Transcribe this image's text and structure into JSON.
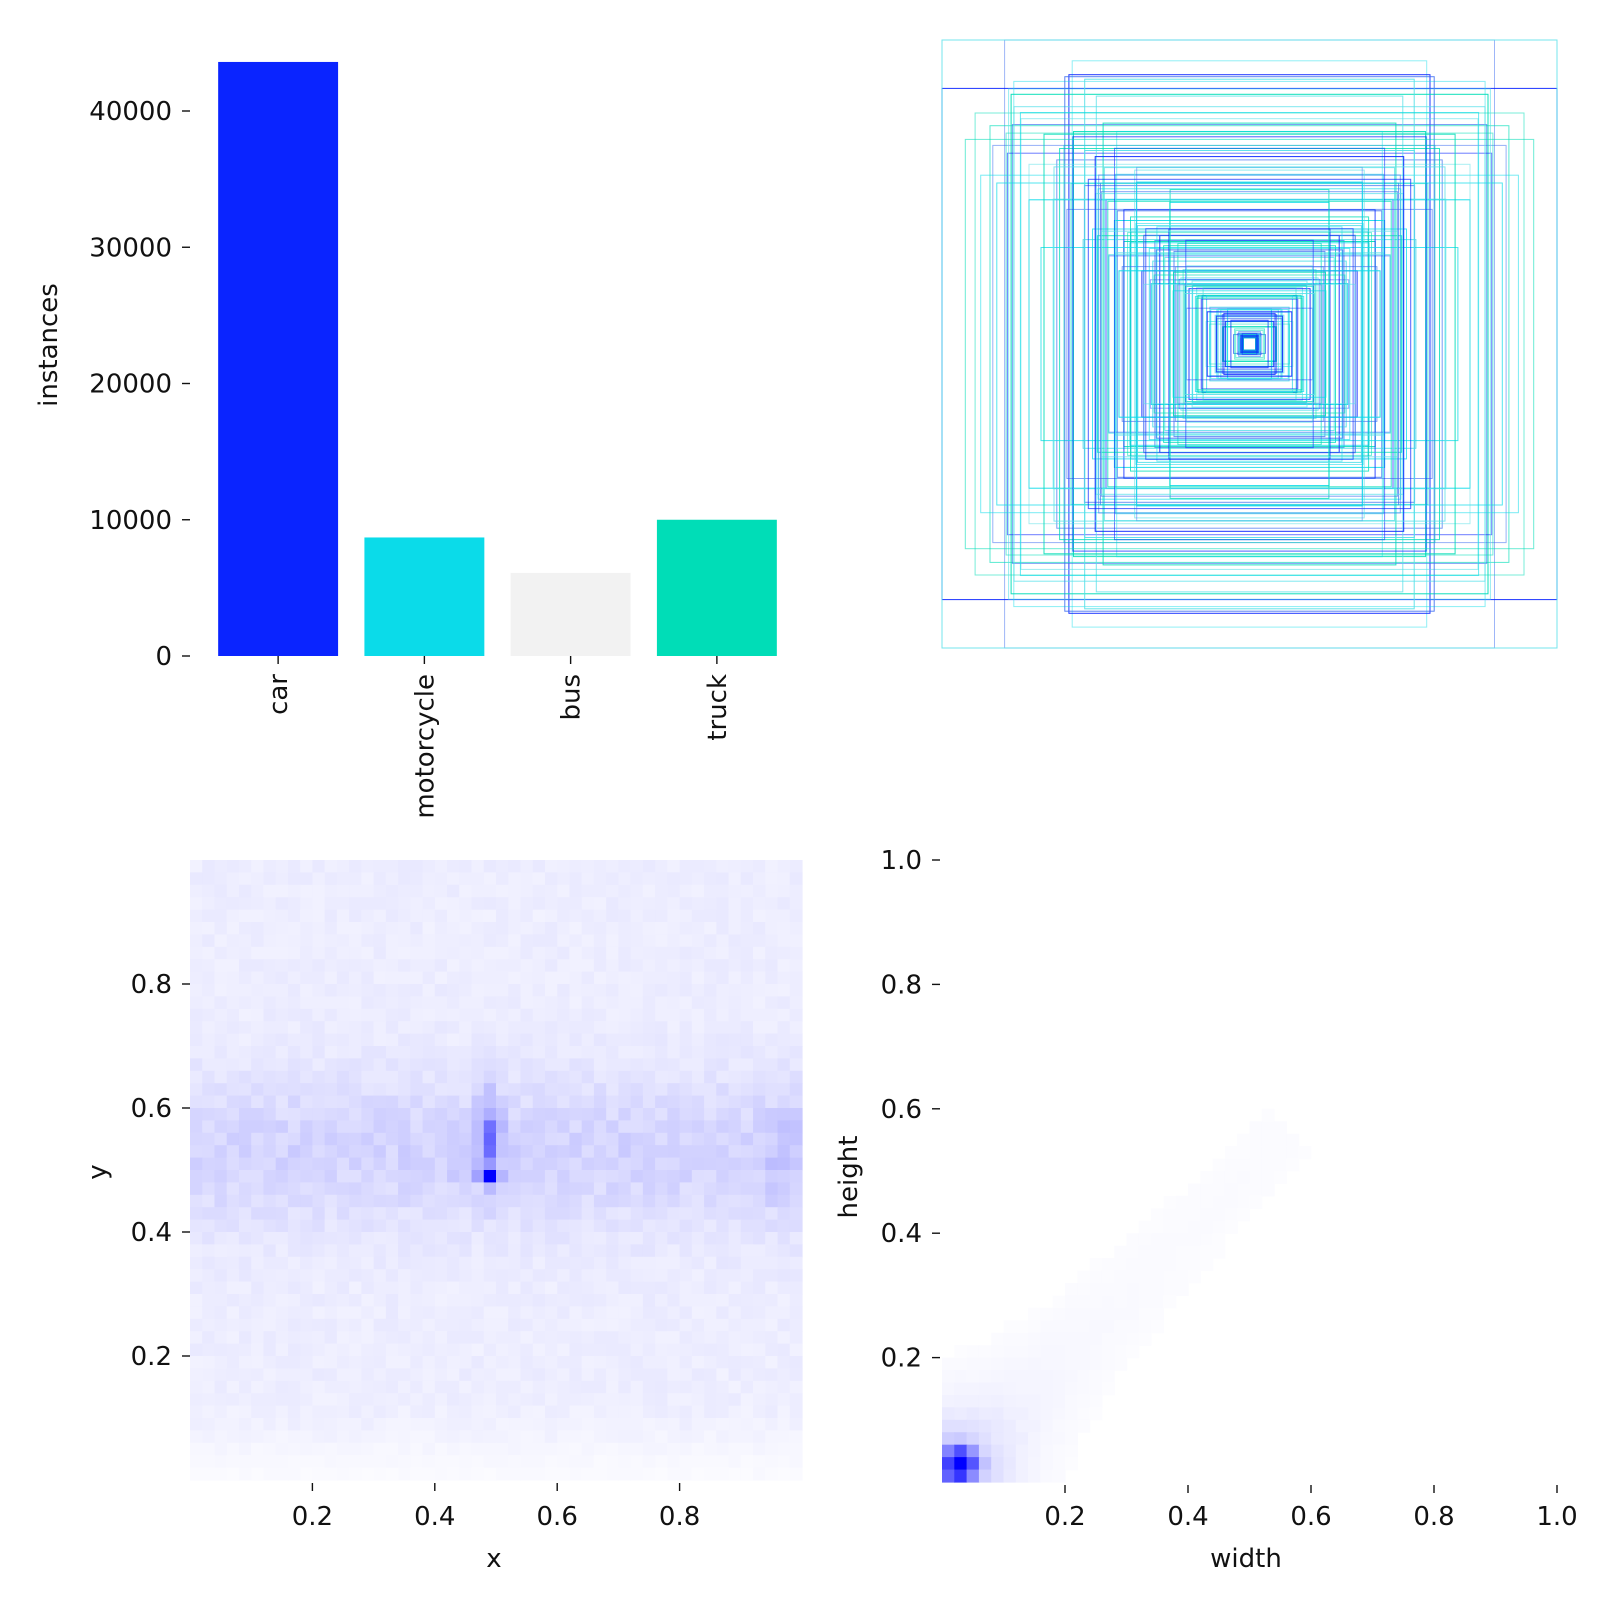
{
  "chart_data": [
    {
      "id": "class_counts",
      "type": "bar",
      "title": "",
      "xlabel": "",
      "ylabel": "instances",
      "categories": [
        "car",
        "motorcycle",
        "bus",
        "truck"
      ],
      "values": [
        43600,
        8700,
        6100,
        10000
      ],
      "colors": [
        "#0a24ff",
        "#0bdbe9",
        "#f2f2f2",
        "#00ddb7"
      ],
      "ylim": [
        0,
        44000
      ],
      "yticks": [
        0,
        10000,
        20000,
        30000,
        40000
      ],
      "ytick_labels": [
        "0",
        "10000",
        "20000",
        "30000",
        "40000"
      ],
      "grid": false
    },
    {
      "id": "box_overlay",
      "type": "scatter",
      "title": "",
      "description_kind": "overlay of label boxes centered at (0.5, 0.5)",
      "xlim": [
        0,
        1
      ],
      "ylim": [
        0,
        1
      ],
      "axes_visible": false,
      "box_count_drawn": 170,
      "colors": [
        "#0a24ff",
        "#3b6bf0",
        "#0bdbe9",
        "#56e0e8",
        "#00ddb7"
      ]
    },
    {
      "id": "xy_heatmap",
      "type": "heatmap",
      "title": "",
      "xlabel": "x",
      "ylabel": "y",
      "xlim": [
        0,
        1
      ],
      "ylim": [
        0,
        1
      ],
      "xticks": [
        0.2,
        0.4,
        0.6,
        0.8
      ],
      "xtick_labels": [
        "0.2",
        "0.4",
        "0.6",
        "0.8"
      ],
      "yticks": [
        0.2,
        0.4,
        0.6,
        0.8
      ],
      "ytick_labels": [
        "0.2",
        "0.4",
        "0.6",
        "0.8"
      ],
      "bins": 50,
      "peak": [
        0.49,
        0.49
      ],
      "cmap": "white-to-blue"
    },
    {
      "id": "wh_heatmap",
      "type": "heatmap",
      "title": "",
      "xlabel": "width",
      "ylabel": "height",
      "xlim": [
        0,
        1
      ],
      "ylim": [
        0,
        1
      ],
      "xticks": [
        0.2,
        0.4,
        0.6,
        0.8,
        1.0
      ],
      "xtick_labels": [
        "0.2",
        "0.4",
        "0.6",
        "0.8",
        "1.0"
      ],
      "yticks": [
        0.2,
        0.4,
        0.6,
        0.8,
        1.0
      ],
      "ytick_labels": [
        "0.2",
        "0.4",
        "0.6",
        "0.8",
        "1.0"
      ],
      "bins": 50,
      "peak": [
        0.03,
        0.03
      ],
      "cmap": "white-to-blue"
    }
  ]
}
